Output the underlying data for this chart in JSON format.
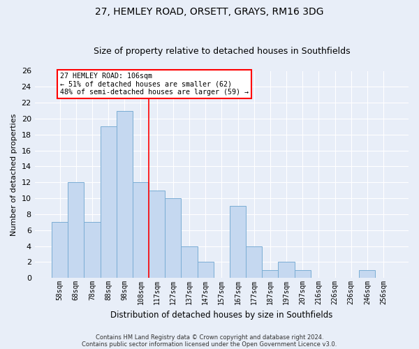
{
  "title": "27, HEMLEY ROAD, ORSETT, GRAYS, RM16 3DG",
  "subtitle": "Size of property relative to detached houses in Southfields",
  "xlabel": "Distribution of detached houses by size in Southfields",
  "ylabel": "Number of detached properties",
  "categories": [
    "58sqm",
    "68sqm",
    "78sqm",
    "88sqm",
    "98sqm",
    "108sqm",
    "117sqm",
    "127sqm",
    "137sqm",
    "147sqm",
    "157sqm",
    "167sqm",
    "177sqm",
    "187sqm",
    "197sqm",
    "207sqm",
    "216sqm",
    "226sqm",
    "236sqm",
    "246sqm",
    "256sqm"
  ],
  "values": [
    7,
    12,
    7,
    19,
    21,
    12,
    11,
    10,
    4,
    2,
    0,
    9,
    4,
    1,
    2,
    1,
    0,
    0,
    0,
    1,
    0
  ],
  "bar_color": "#c5d8f0",
  "bar_edge_color": "#7aadd4",
  "vline_x_index": 5,
  "vline_color": "red",
  "annotation_text": "27 HEMLEY ROAD: 106sqm\n← 51% of detached houses are smaller (62)\n48% of semi-detached houses are larger (59) →",
  "annotation_box_color": "white",
  "annotation_box_edge": "red",
  "ylim": [
    0,
    26
  ],
  "yticks": [
    0,
    2,
    4,
    6,
    8,
    10,
    12,
    14,
    16,
    18,
    20,
    22,
    24,
    26
  ],
  "footer1": "Contains HM Land Registry data © Crown copyright and database right 2024.",
  "footer2": "Contains public sector information licensed under the Open Government Licence v3.0.",
  "bg_color": "#e8eef8",
  "plot_bg": "#e8eef8",
  "title_fontsize": 10,
  "subtitle_fontsize": 9
}
